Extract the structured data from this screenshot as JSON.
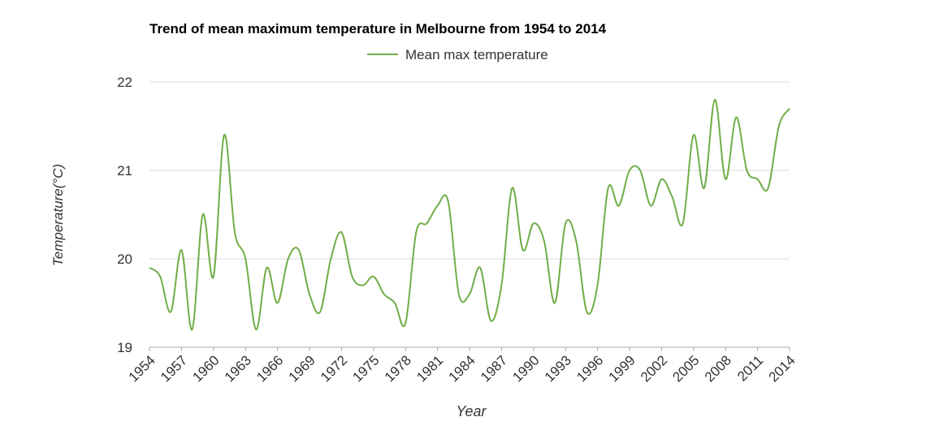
{
  "chart_data": {
    "type": "line",
    "title": "Trend of mean maximum temperature in Melbourne from 1954 to 2014",
    "xlabel": "Year",
    "ylabel": "Temperature(°C)",
    "ylim": [
      19,
      22
    ],
    "yticks": [
      "19",
      "20",
      "21",
      "22"
    ],
    "xticks": [
      "1954",
      "1957",
      "1960",
      "1963",
      "1966",
      "1969",
      "1972",
      "1975",
      "1978",
      "1981",
      "1984",
      "1987",
      "1990",
      "1993",
      "1996",
      "1999",
      "2002",
      "2005",
      "2008",
      "2011",
      "2014"
    ],
    "grid": true,
    "legend_position": "top-center",
    "x": [
      1954,
      1955,
      1956,
      1957,
      1958,
      1959,
      1960,
      1961,
      1962,
      1963,
      1964,
      1965,
      1966,
      1967,
      1968,
      1969,
      1970,
      1971,
      1972,
      1973,
      1974,
      1975,
      1976,
      1977,
      1978,
      1979,
      1980,
      1981,
      1982,
      1983,
      1984,
      1985,
      1986,
      1987,
      1988,
      1989,
      1990,
      1991,
      1992,
      1993,
      1994,
      1995,
      1996,
      1997,
      1998,
      1999,
      2000,
      2001,
      2002,
      2003,
      2004,
      2005,
      2006,
      2007,
      2008,
      2009,
      2010,
      2011,
      2012,
      2013,
      2014
    ],
    "series": [
      {
        "name": "Mean max temperature",
        "color": "#70ad47",
        "values": [
          19.9,
          19.8,
          19.4,
          20.1,
          19.2,
          20.5,
          19.8,
          21.4,
          20.3,
          20.0,
          19.2,
          19.9,
          19.5,
          20.0,
          20.1,
          19.6,
          19.4,
          20.0,
          20.3,
          19.8,
          19.7,
          19.8,
          19.6,
          19.5,
          19.27,
          20.3,
          20.4,
          20.6,
          20.65,
          19.6,
          19.6,
          19.9,
          19.3,
          19.7,
          20.8,
          20.1,
          20.4,
          20.2,
          19.5,
          20.4,
          20.2,
          19.4,
          19.7,
          20.8,
          20.6,
          21.0,
          21.0,
          20.6,
          20.9,
          20.7,
          20.4,
          21.4,
          20.8,
          21.8,
          20.9,
          21.6,
          21.0,
          20.9,
          20.8,
          21.5,
          21.7
        ]
      }
    ]
  }
}
